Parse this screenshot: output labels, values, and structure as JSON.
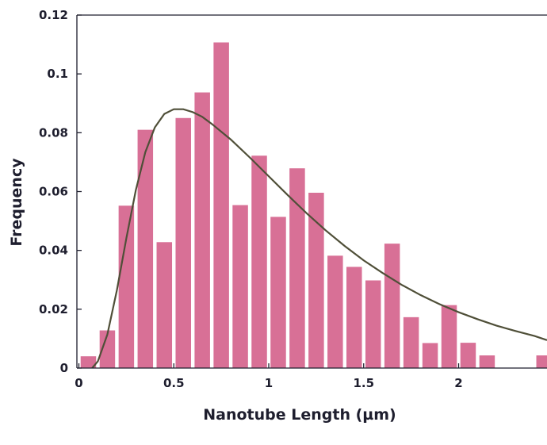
{
  "chart_data": {
    "type": "bar",
    "title": "",
    "xlabel": "Nanotube Length (µm)",
    "ylabel": "Frequency",
    "xlim": [
      0,
      2.45
    ],
    "ylim": [
      0,
      0.12
    ],
    "grid": false,
    "legend": "none",
    "bin_width": 0.1,
    "x_ticks": [
      0,
      0.5,
      1,
      1.5,
      2
    ],
    "x_tick_labels": [
      "0",
      "0.5",
      "1",
      "1.5",
      "2"
    ],
    "y_ticks": [
      0,
      0.02,
      0.04,
      0.06,
      0.08,
      0.1,
      0.12
    ],
    "y_tick_labels": [
      "0",
      "0.02",
      "0.04",
      "0.06",
      "0.08",
      "0.1",
      "0.12"
    ],
    "colors": {
      "bars": "#d87096",
      "curve": "#4f4f38",
      "axis": "#1e1e2e"
    },
    "series": [
      {
        "kind": "histogram",
        "x": [
          0.05,
          0.15,
          0.25,
          0.35,
          0.45,
          0.55,
          0.65,
          0.75,
          0.85,
          0.95,
          1.05,
          1.15,
          1.25,
          1.35,
          1.45,
          1.55,
          1.65,
          1.75,
          1.85,
          1.95,
          2.05,
          2.15,
          2.25,
          2.35,
          2.45
        ],
        "values": [
          0.004,
          0.0128,
          0.0552,
          0.081,
          0.0428,
          0.085,
          0.0937,
          0.1107,
          0.0554,
          0.0722,
          0.0514,
          0.0679,
          0.0596,
          0.0382,
          0.0344,
          0.0298,
          0.0423,
          0.0173,
          0.0085,
          0.0214,
          0.0086,
          0.0043,
          0,
          0,
          0.0043
        ]
      },
      {
        "kind": "fit-curve",
        "x": [
          0.07,
          0.1,
          0.15,
          0.2,
          0.25,
          0.3,
          0.35,
          0.4,
          0.45,
          0.5,
          0.55,
          0.6,
          0.65,
          0.7,
          0.8,
          0.9,
          1.0,
          1.1,
          1.2,
          1.3,
          1.4,
          1.5,
          1.6,
          1.7,
          1.8,
          1.9,
          2.0,
          2.1,
          2.2,
          2.3,
          2.4,
          2.5
        ],
        "values": [
          0.0,
          0.0023,
          0.0114,
          0.0264,
          0.0441,
          0.0605,
          0.0734,
          0.0818,
          0.0864,
          0.088,
          0.088,
          0.087,
          0.0854,
          0.083,
          0.0777,
          0.0716,
          0.0652,
          0.0588,
          0.0526,
          0.0468,
          0.0415,
          0.0366,
          0.0323,
          0.0283,
          0.0248,
          0.0217,
          0.019,
          0.0166,
          0.0144,
          0.0126,
          0.0109,
          0.0095
        ]
      }
    ]
  }
}
